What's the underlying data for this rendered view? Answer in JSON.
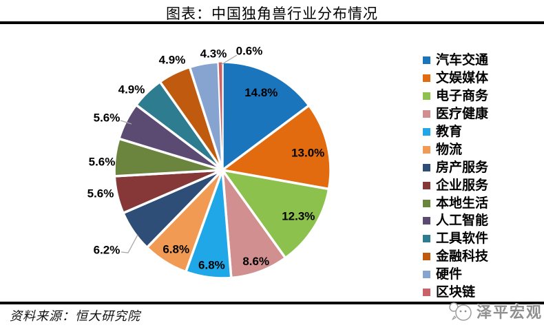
{
  "header": {
    "title": "图表：中国独角兽行业分布情况"
  },
  "footer": {
    "source": "资料来源：恒大研究院",
    "watermark": "泽平宏观"
  },
  "chart_data": {
    "type": "pie",
    "title": "图表：中国独角兽行业分布情况",
    "categories": [
      "汽车交通",
      "文娱媒体",
      "电子商务",
      "医疗健康",
      "教育",
      "物流",
      "房产服务",
      "企业服务",
      "本地生活",
      "人工智能",
      "工具软件",
      "金融科技",
      "硬件",
      "区块链"
    ],
    "values": [
      14.8,
      13.0,
      12.3,
      8.6,
      6.8,
      6.8,
      6.2,
      5.6,
      5.6,
      5.6,
      4.9,
      4.9,
      4.3,
      0.6
    ],
    "labels": [
      "14.8%",
      "13.0%",
      "12.3%",
      "8.6%",
      "6.8%",
      "6.8%",
      "6.2%",
      "5.6%",
      "5.6%",
      "5.6%",
      "4.9%",
      "4.9%",
      "4.3%",
      "0.6%"
    ],
    "colors": [
      "#1b75bc",
      "#e16b0e",
      "#8dc14e",
      "#d1908f",
      "#1fa7e8",
      "#f19a53",
      "#2e4d77",
      "#853837",
      "#6b853e",
      "#5b4a72",
      "#2e7c8f",
      "#c05a0e",
      "#87a3cf",
      "#ca6166"
    ],
    "start_angle_deg": 0,
    "direction": "clockwise",
    "legend_position": "right",
    "separator_color": "#ffffff",
    "leader_color": "#a6a6a6",
    "rule_color": "#000000",
    "watermark_color": "#8f8f8f"
  }
}
